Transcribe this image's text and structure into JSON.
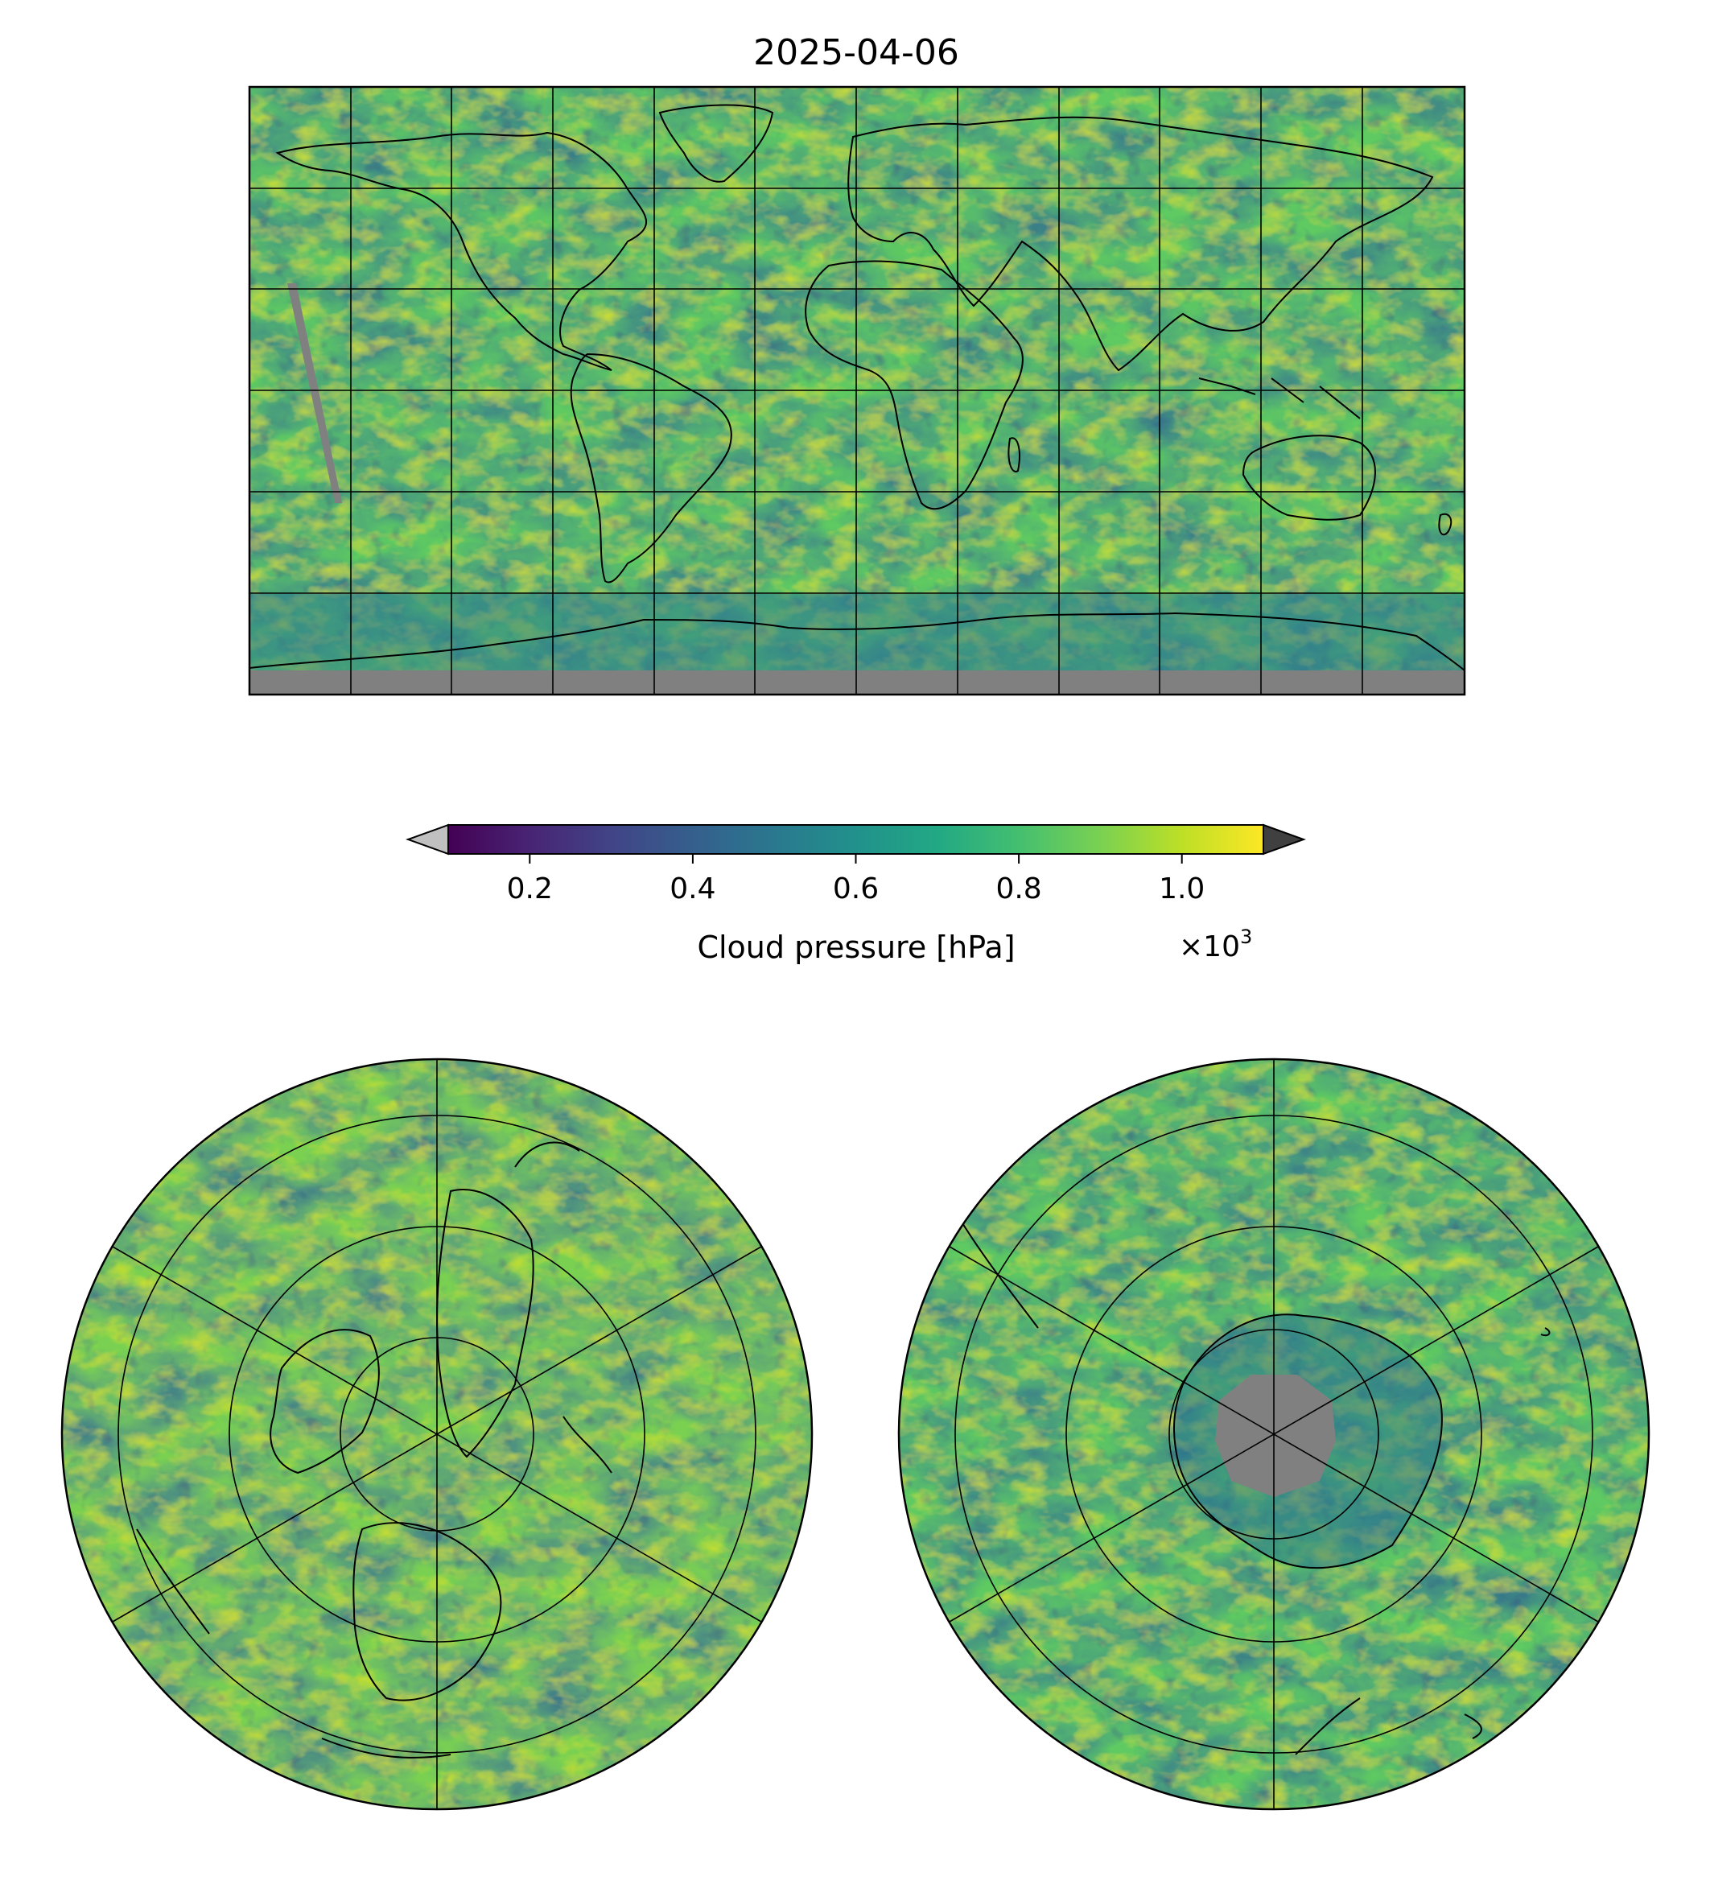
{
  "figure": {
    "title": "2025-04-06"
  },
  "colorbar": {
    "label": "Cloud pressure [hPa]",
    "ticks": [
      "0.2",
      "0.4",
      "0.6",
      "0.8",
      "1.0"
    ],
    "tick_values": [
      0.2,
      0.4,
      0.6,
      0.8,
      1.0
    ],
    "range": [
      0.1,
      1.1
    ],
    "multiplier_base": "×10",
    "multiplier_exp": "3",
    "colormap": "viridis",
    "extend": "both",
    "under_color": "#c0c0c0",
    "over_color": "#404040"
  },
  "colors": {
    "missing_data": "#808080",
    "coastline": "#000000",
    "frame": "#000000"
  },
  "maps": [
    {
      "projection": "plate-carree",
      "view": "global"
    },
    {
      "projection": "north-polar-stereographic",
      "view": "north-pole"
    },
    {
      "projection": "south-polar-stereographic",
      "view": "south-pole"
    }
  ]
}
